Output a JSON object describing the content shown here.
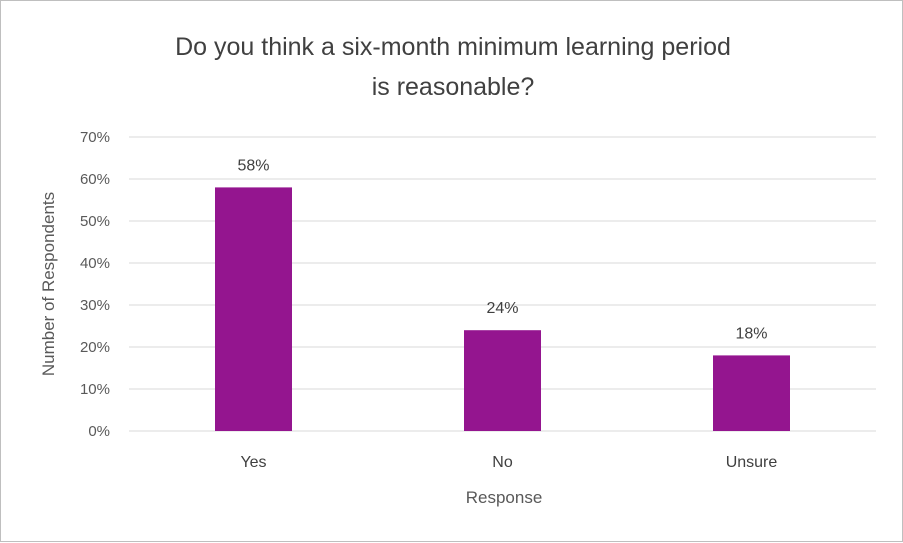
{
  "chart_data": {
    "type": "bar",
    "title_lines": [
      "Do you think a six-month minimum learning period",
      "is reasonable?"
    ],
    "xlabel": "Response",
    "ylabel": "Number of Respondents",
    "categories": [
      "Yes",
      "No",
      "Unsure"
    ],
    "values": [
      58,
      24,
      18
    ],
    "data_labels": [
      "58%",
      "24%",
      "18%"
    ],
    "ylim": [
      0,
      70
    ],
    "yticks": [
      0,
      10,
      20,
      30,
      40,
      50,
      60,
      70
    ],
    "ytick_labels": [
      "0%",
      "10%",
      "20%",
      "30%",
      "40%",
      "50%",
      "60%",
      "70%"
    ],
    "grid": true,
    "legend": "none",
    "bar_color": "#94158f",
    "grid_color": "#d9d9d9"
  }
}
